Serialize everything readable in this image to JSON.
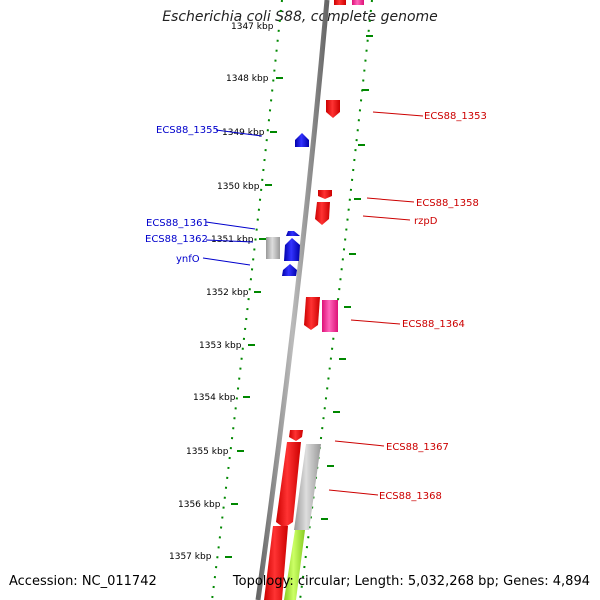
{
  "title": "Escherichia coli S88, complete genome",
  "footer": {
    "accession": "Accession: NC_011742",
    "summary": "Topology: circular; Length: 5,032,268 bp; Genes: 4,894"
  },
  "ticks": [
    {
      "label": "1347 kbp"
    },
    {
      "label": "1348 kbp"
    },
    {
      "label": "1349 kbp"
    },
    {
      "label": "1350 kbp"
    },
    {
      "label": "1351 kbp"
    },
    {
      "label": "1352 kbp"
    },
    {
      "label": "1353 kbp"
    },
    {
      "label": "1354 kbp"
    },
    {
      "label": "1355 kbp"
    },
    {
      "label": "1356 kbp"
    },
    {
      "label": "1357 kbp"
    }
  ],
  "genes_left": [
    {
      "name": "ECS88_1355",
      "color": "#0000cc"
    },
    {
      "name": "ECS88_1361",
      "color": "#0000cc"
    },
    {
      "name": "ECS88_1362",
      "color": "#0000cc"
    },
    {
      "name": "ynfO",
      "color": "#0000cc"
    }
  ],
  "genes_right": [
    {
      "name": "ECS88_1353",
      "color": "#cc0000"
    },
    {
      "name": "ECS88_1358",
      "color": "#cc0000"
    },
    {
      "name": "rzpD",
      "color": "#cc0000"
    },
    {
      "name": "ECS88_1364",
      "color": "#cc0000"
    },
    {
      "name": "ECS88_1367",
      "color": "#cc0000"
    },
    {
      "name": "ECS88_1368",
      "color": "#cc0000"
    }
  ],
  "colors": {
    "forward": "#ff0000",
    "reverse": "#0000ee",
    "pseudo": "#aaaaaa",
    "rna": "#ff3399",
    "other": "#aaff33",
    "dots": "#008800",
    "backbone": "#888888"
  }
}
